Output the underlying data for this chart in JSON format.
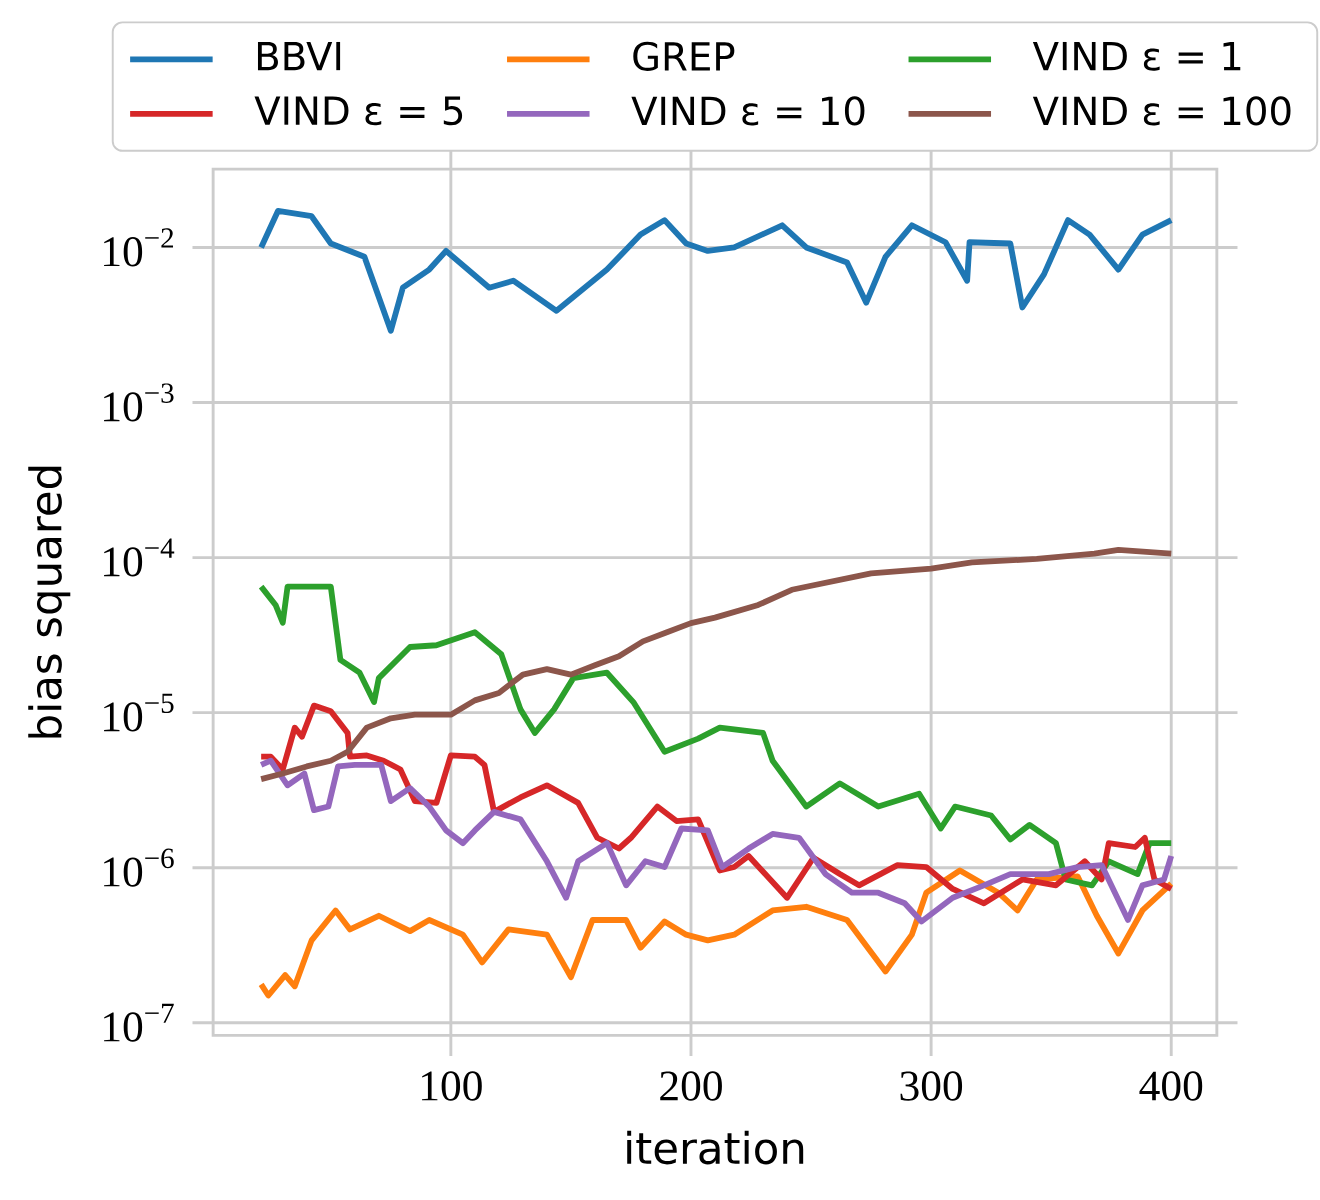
{
  "chart_data": {
    "type": "line",
    "xlabel": "iteration",
    "ylabel": "bias squared",
    "xlim": [
      1,
      419
    ],
    "ylim": [
      8.3e-08,
      0.032
    ],
    "xticks": [
      100,
      200,
      300,
      400
    ],
    "yticks": [
      {
        "value": 1e-07,
        "label": "10$^{−7}$"
      },
      {
        "value": 1e-06,
        "label": "10$^{−6}$"
      },
      {
        "value": 1e-05,
        "label": "10$^{−5}$"
      },
      {
        "value": 0.0001,
        "label": "10$^{−4}$"
      },
      {
        "value": 0.001,
        "label": "10$^{−3}$"
      },
      {
        "value": 0.01,
        "label": "10$^{−2}$"
      }
    ],
    "log": "y",
    "grid": true,
    "legend": "top",
    "series": [
      {
        "name": "BBVI",
        "color": "#1f77b4",
        "x": [
          21,
          28,
          42,
          50,
          64,
          75,
          80,
          91,
          98,
          116,
          126,
          144,
          165,
          179,
          189,
          198,
          207,
          218,
          238,
          248,
          265,
          273,
          281,
          292,
          306,
          315,
          316,
          333,
          338,
          347,
          357,
          366,
          378,
          388,
          400
        ],
        "values": [
          0.01,
          0.0172,
          0.0159,
          0.0106,
          0.0087,
          0.0029,
          0.0055,
          0.0072,
          0.0095,
          0.0055,
          0.0061,
          0.0039,
          0.0072,
          0.0121,
          0.015,
          0.0106,
          0.0095,
          0.01,
          0.0139,
          0.01,
          0.008,
          0.0044,
          0.0087,
          0.0139,
          0.0108,
          0.0061,
          0.0108,
          0.0106,
          0.0041,
          0.0067,
          0.015,
          0.0121,
          0.0072,
          0.0121,
          0.015
        ]
      },
      {
        "name": "GREP",
        "color": "#ff7f0e",
        "x": [
          21,
          24,
          31,
          35,
          42,
          52,
          58,
          70,
          83,
          91,
          105,
          113,
          124,
          140,
          150,
          159,
          173,
          179,
          189,
          198,
          207,
          218,
          234,
          248,
          265,
          281,
          292,
          298,
          312,
          328,
          336,
          344,
          361,
          369,
          378,
          388,
          400
        ],
        "values": [
          1.77e-07,
          1.5e-07,
          2.03e-07,
          1.72e-07,
          3.4e-07,
          5.3e-07,
          4e-07,
          4.9e-07,
          3.9e-07,
          4.6e-07,
          3.7e-07,
          2.45e-07,
          4e-07,
          3.7e-07,
          1.97e-07,
          4.6e-07,
          4.6e-07,
          3.05e-07,
          4.5e-07,
          3.7e-07,
          3.4e-07,
          3.7e-07,
          5.3e-07,
          5.6e-07,
          4.6e-07,
          2.14e-07,
          3.7e-07,
          6.9e-07,
          9.6e-07,
          6.9e-07,
          5.3e-07,
          8.4e-07,
          8.8e-07,
          4.9e-07,
          2.8e-07,
          5.3e-07,
          7.9e-07
        ]
      },
      {
        "name": "VIND ε = 1",
        "color": "#2ca02c",
        "x": [
          21,
          27,
          30,
          32,
          50,
          54,
          62,
          68,
          70,
          83,
          94,
          110,
          121,
          129,
          135,
          143,
          151,
          165,
          176,
          189,
          203,
          212,
          230,
          234,
          248,
          262,
          278,
          295,
          304,
          310,
          325,
          333,
          341,
          352,
          356,
          367,
          374,
          386,
          391,
          400
        ],
        "values": [
          6.5e-05,
          4.95e-05,
          3.8e-05,
          6.5e-05,
          6.5e-05,
          2.19e-05,
          1.81e-05,
          1.17e-05,
          1.67e-05,
          2.65e-05,
          2.72e-05,
          3.3e-05,
          2.38e-05,
          1.05e-05,
          7.4e-06,
          1.05e-05,
          1.67e-05,
          1.81e-05,
          1.17e-05,
          5.6e-06,
          6.8e-06,
          8e-06,
          7.4e-06,
          4.9e-06,
          2.48e-06,
          3.5e-06,
          2.48e-06,
          3e-06,
          1.79e-06,
          2.48e-06,
          2.17e-06,
          1.52e-06,
          1.89e-06,
          1.44e-06,
          8.4e-07,
          7.7e-07,
          1.1e-06,
          9.1e-07,
          1.44e-06,
          1.44e-06
        ]
      },
      {
        "name": "VIND ε = 5",
        "color": "#d62728",
        "x": [
          21,
          25,
          30,
          35,
          38,
          43,
          50,
          57,
          58,
          65,
          72,
          79,
          85,
          94,
          100,
          110,
          114,
          118,
          129,
          140,
          153,
          161,
          170,
          175,
          186,
          194,
          203,
          212,
          218,
          224,
          240,
          251,
          262,
          270,
          286,
          298,
          309,
          322,
          338,
          352,
          364,
          371,
          374,
          385,
          389,
          393,
          400
        ],
        "values": [
          5.2e-06,
          5.2e-06,
          4.3e-06,
          8e-06,
          7e-06,
          1.11e-05,
          1.02e-05,
          7.4e-06,
          5.2e-06,
          5.3e-06,
          4.9e-06,
          4.3e-06,
          2.69e-06,
          2.62e-06,
          5.3e-06,
          5.2e-06,
          4.6e-06,
          2.29e-06,
          2.84e-06,
          3.4e-06,
          2.62e-06,
          1.56e-06,
          1.33e-06,
          1.56e-06,
          2.48e-06,
          2e-06,
          2.05e-06,
          9.6e-07,
          1.01e-06,
          1.19e-06,
          6.4e-07,
          1.16e-06,
          9.1e-07,
          7.7e-07,
          1.04e-06,
          1.01e-06,
          7.3e-07,
          5.9e-07,
          8.4e-07,
          7.7e-07,
          1.1e-06,
          8.4e-07,
          1.44e-06,
          1.36e-06,
          1.56e-06,
          8.4e-07,
          7.3e-07
        ]
      },
      {
        "name": "VIND ε = 10",
        "color": "#9467bd",
        "x": [
          21,
          25,
          32,
          39,
          43,
          49,
          53,
          60,
          71,
          75,
          83,
          91,
          98,
          105,
          110,
          118,
          129,
          140,
          148,
          153,
          165,
          173,
          181,
          189,
          196,
          207,
          213,
          224,
          234,
          245,
          256,
          267,
          278,
          289,
          296,
          309,
          322,
          333,
          349,
          361,
          371,
          382,
          388,
          397,
          400
        ],
        "values": [
          4.6e-06,
          4.9e-06,
          3.4e-06,
          4.05e-06,
          2.35e-06,
          2.48e-06,
          4.5e-06,
          4.6e-06,
          4.6e-06,
          2.69e-06,
          3.26e-06,
          2.48e-06,
          1.74e-06,
          1.44e-06,
          1.74e-06,
          2.29e-06,
          2.05e-06,
          1.1e-06,
          6.4e-07,
          1.1e-06,
          1.44e-06,
          7.7e-07,
          1.1e-06,
          1.01e-06,
          1.79e-06,
          1.74e-06,
          1.01e-06,
          1.33e-06,
          1.65e-06,
          1.56e-06,
          9.1e-07,
          6.9e-07,
          6.9e-07,
          5.9e-07,
          4.5e-07,
          6.4e-07,
          7.7e-07,
          9.1e-07,
          9.1e-07,
          1.01e-06,
          1.04e-06,
          4.6e-07,
          7.7e-07,
          8.4e-07,
          1.19e-06
        ]
      },
      {
        "name": "VIND ε = 100",
        "color": "#8c564b",
        "x": [
          21,
          30,
          40,
          50,
          57,
          65,
          75,
          85,
          100,
          110,
          120,
          130,
          140,
          150,
          160,
          170,
          180,
          190,
          200,
          210,
          228,
          242,
          275,
          300,
          317,
          344,
          368,
          378,
          400
        ],
        "values": [
          3.73e-06,
          4.05e-06,
          4.5e-06,
          4.9e-06,
          5.6e-06,
          8e-06,
          9.2e-06,
          9.7e-06,
          9.7e-06,
          1.2e-05,
          1.34e-05,
          1.76e-05,
          1.91e-05,
          1.76e-05,
          2.02e-05,
          2.31e-05,
          2.88e-05,
          3.3e-05,
          3.78e-05,
          4.1e-05,
          4.95e-05,
          6.2e-05,
          7.9e-05,
          8.5e-05,
          9.3e-05,
          9.8e-05,
          0.000106,
          0.000112,
          0.000106
        ]
      }
    ]
  }
}
